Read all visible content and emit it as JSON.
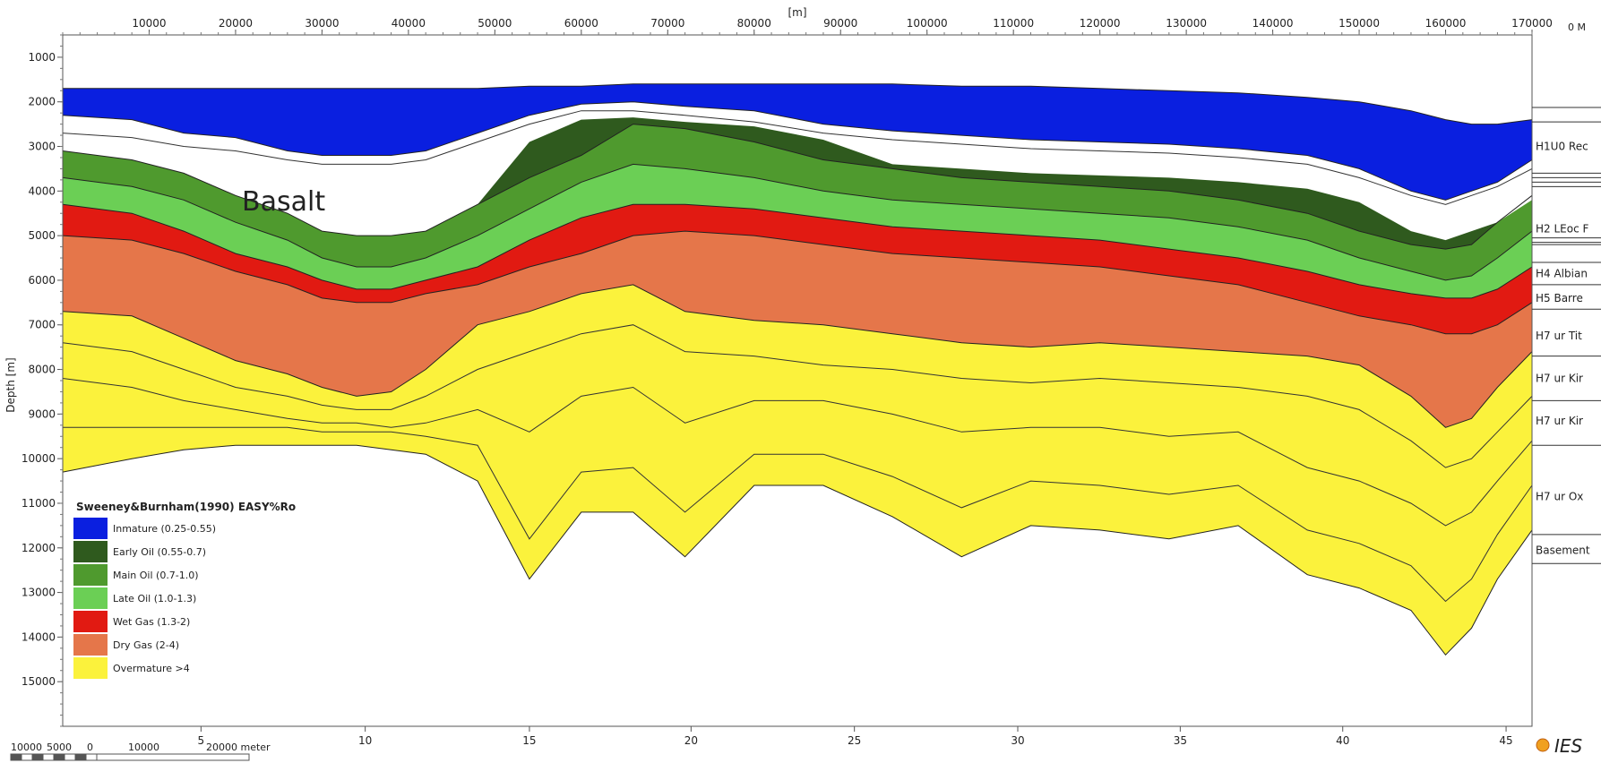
{
  "chart_data": {
    "type": "area",
    "title": "",
    "top_axis_unit": "[m]",
    "top_right_label": "0 M",
    "ylabel": "Depth [m]",
    "x_range": [
      0,
      170000
    ],
    "y_range": [
      500,
      16000
    ],
    "y_ticks": [
      1000,
      2000,
      3000,
      4000,
      5000,
      6000,
      7000,
      8000,
      9000,
      10000,
      11000,
      12000,
      13000,
      14000,
      15000
    ],
    "top_ticks": [
      10000,
      20000,
      30000,
      40000,
      50000,
      60000,
      70000,
      80000,
      90000,
      100000,
      110000,
      120000,
      130000,
      140000,
      150000,
      160000,
      170000
    ],
    "top_tick_labels": [
      "10000",
      "20000",
      "30000",
      "40000",
      "50000",
      "60000",
      "70000",
      "80000",
      "90000",
      "100000",
      "110000",
      "120000",
      "130000",
      "140000",
      "150000",
      "160000",
      "170000"
    ],
    "bottom_ticks": [
      5,
      10,
      15,
      20,
      25,
      30,
      35,
      40,
      45
    ],
    "bottom_tick_positions": [
      16000,
      35000,
      54000,
      72700,
      91600,
      110500,
      129300,
      148100,
      167000
    ],
    "annotation": "Basalt",
    "x": [
      0,
      8000,
      14000,
      20000,
      26000,
      30000,
      34000,
      38000,
      42000,
      48000,
      54000,
      60000,
      66000,
      72000,
      80000,
      88000,
      96000,
      104000,
      112000,
      120000,
      128000,
      136000,
      144000,
      150000,
      156000,
      160000,
      163000,
      166000,
      170000
    ],
    "surfaces": {
      "top": [
        1700,
        1700,
        1700,
        1700,
        1700,
        1700,
        1700,
        1700,
        1700,
        1700,
        1650,
        1650,
        1600,
        1600,
        1600,
        1600,
        1600,
        1650,
        1650,
        1700,
        1750,
        1800,
        1900,
        2000,
        2200,
        2400,
        2500,
        2500,
        2400
      ],
      "imm_bottom": [
        2300,
        2400,
        2700,
        2800,
        3100,
        3200,
        3200,
        3200,
        3100,
        2700,
        2300,
        2050,
        2000,
        2100,
        2200,
        2500,
        2650,
        2750,
        2850,
        2900,
        2950,
        3050,
        3200,
        3500,
        4000,
        4200,
        4000,
        3800,
        3300
      ],
      "early_bottom": [
        3100,
        3300,
        3600,
        4100,
        4500,
        4900,
        5000,
        5000,
        4900,
        4300,
        3700,
        3200,
        2500,
        2600,
        2900,
        3300,
        3500,
        3700,
        3800,
        3900,
        4000,
        4200,
        4500,
        4900,
        5200,
        5300,
        5200,
        4700,
        4100
      ],
      "main_bottom": [
        3700,
        3900,
        4200,
        4700,
        5100,
        5500,
        5700,
        5700,
        5500,
        5000,
        4400,
        3800,
        3400,
        3500,
        3700,
        4000,
        4200,
        4300,
        4400,
        4500,
        4600,
        4800,
        5100,
        5500,
        5800,
        6000,
        5900,
        5500,
        4900
      ],
      "late_bottom": [
        4300,
        4500,
        4900,
        5400,
        5700,
        6000,
        6200,
        6200,
        6000,
        5700,
        5100,
        4600,
        4300,
        4300,
        4400,
        4600,
        4800,
        4900,
        5000,
        5100,
        5300,
        5500,
        5800,
        6100,
        6300,
        6400,
        6400,
        6200,
        5700
      ],
      "wet_bottom": [
        5000,
        5100,
        5400,
        5800,
        6100,
        6400,
        6500,
        6500,
        6300,
        6100,
        5700,
        5400,
        5000,
        4900,
        5000,
        5200,
        5400,
        5500,
        5600,
        5700,
        5900,
        6100,
        6500,
        6800,
        7000,
        7200,
        7200,
        7000,
        6500
      ],
      "dry_bottom": [
        6700,
        6800,
        7300,
        7800,
        8100,
        8400,
        8600,
        8500,
        8000,
        7000,
        6700,
        6300,
        6100,
        6700,
        6900,
        7000,
        7200,
        7400,
        7500,
        7400,
        7500,
        7600,
        7700,
        7900,
        8600,
        9300,
        9100,
        8400,
        7600
      ],
      "over_bottom": [
        10300,
        10000,
        9800,
        9700,
        9700,
        9700,
        9700,
        9800,
        9900,
        10500,
        12700,
        11200,
        11200,
        12200,
        10600,
        10600,
        11300,
        12200,
        11500,
        11600,
        11800,
        11500,
        12600,
        12900,
        13400,
        14400,
        13800,
        12700,
        11600
      ]
    },
    "internal_lines": [
      [
        2700,
        2800,
        3000,
        3100,
        3300,
        3400,
        3400,
        3400,
        3300,
        2900,
        2500,
        2200,
        2200,
        2300,
        2450,
        2700,
        2850,
        2950,
        3050,
        3100,
        3150,
        3250,
        3400,
        3700,
        4100,
        4300,
        4100,
        3900,
        3500
      ],
      [
        7400,
        7600,
        8000,
        8400,
        8600,
        8800,
        8900,
        8900,
        8600,
        8000,
        7600,
        7200,
        7000,
        7600,
        7700,
        7900,
        8000,
        8200,
        8300,
        8200,
        8300,
        8400,
        8600,
        8900,
        9600,
        10200,
        10000,
        9400,
        8600
      ],
      [
        8200,
        8400,
        8700,
        8900,
        9100,
        9200,
        9200,
        9300,
        9200,
        8900,
        9400,
        8600,
        8400,
        9200,
        8700,
        8700,
        9000,
        9400,
        9300,
        9300,
        9500,
        9400,
        10200,
        10500,
        11000,
        11500,
        11200,
        10500,
        9600
      ],
      [
        9300,
        9300,
        9300,
        9300,
        9300,
        9400,
        9400,
        9400,
        9500,
        9700,
        11800,
        10300,
        10200,
        11200,
        9900,
        9900,
        10400,
        11100,
        10500,
        10600,
        10800,
        10600,
        11600,
        11900,
        12400,
        13200,
        12700,
        11700,
        10600
      ]
    ],
    "legend": {
      "title": "Sweeney&Burnham(1990) EASY%Ro",
      "position": "bottom-left",
      "items": [
        {
          "label": "Inmature (0.25-0.55)",
          "color": "#0a1fe0"
        },
        {
          "label": "Early Oil (0.55-0.7)",
          "color": "#2f5a1e"
        },
        {
          "label": "Main Oil (0.7-1.0)",
          "color": "#4f9a2e"
        },
        {
          "label": "Late Oil (1.0-1.3)",
          "color": "#6bcf55"
        },
        {
          "label": "Wet Gas (1.3-2)",
          "color": "#e11a12"
        },
        {
          "label": "Dry Gas (2-4)",
          "color": "#e5764a"
        },
        {
          "label": "Overmature >4",
          "color": "#fbf23c"
        }
      ]
    },
    "horizon_labels": [
      {
        "label": "H1U0 Rec",
        "depth": 3000
      },
      {
        "label": "H2 LEoc F",
        "depth": 4850
      },
      {
        "label": "H4 Albian",
        "depth": 5850
      },
      {
        "label": "H5 Barre",
        "depth": 6400
      },
      {
        "label": "H7 ur Tit",
        "depth": 7250
      },
      {
        "label": "H7 ur Kir",
        "depth": 8200
      },
      {
        "label": "H7 ur Kir",
        "depth": 9150
      },
      {
        "label": "H7 ur Ox",
        "depth": 10850
      },
      {
        "label": "Basement",
        "depth": 12050
      }
    ],
    "horizon_lines": [
      2450,
      3600,
      3700,
      3800,
      3900,
      5050,
      5150,
      5200,
      5600,
      6100,
      6650,
      7700,
      8700,
      9700,
      11700,
      12350
    ],
    "scale_bar": {
      "labels": [
        "10000",
        "5000",
        "0",
        "10000",
        "20000 meter"
      ]
    },
    "logo_text": "IES"
  }
}
